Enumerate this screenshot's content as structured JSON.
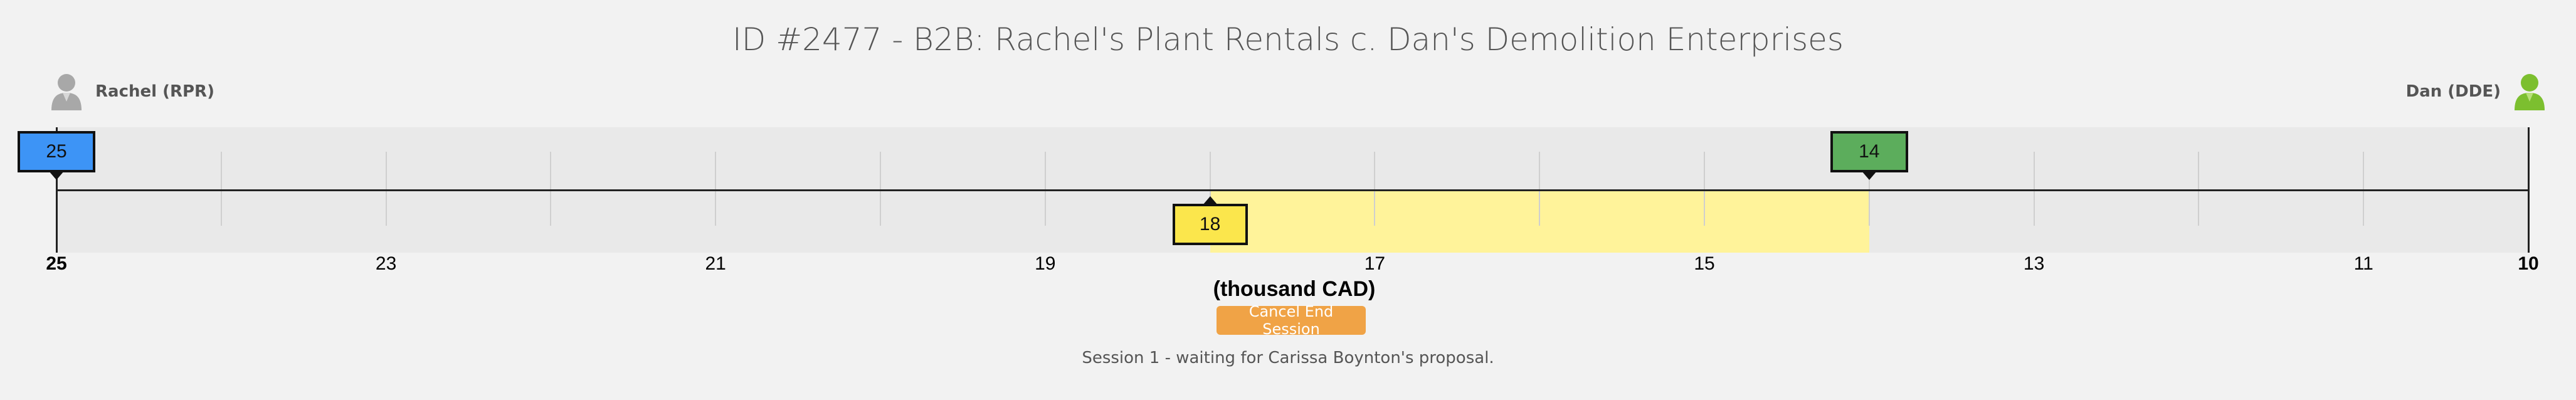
{
  "title": "ID #2477 - B2B: Rachel's Plant Rentals c. Dan's Demolition Enterprises",
  "parties": {
    "left": {
      "name": "Rachel (RPR)",
      "avatar_icon": "user-gray-icon",
      "color": "#a8a8a8"
    },
    "right": {
      "name": "Dan (DDE)",
      "avatar_icon": "user-green-icon",
      "color": "#7cbf2f"
    }
  },
  "scale": {
    "min_value": 25,
    "max_value": 10,
    "ticks": [
      25,
      24,
      23,
      22,
      21,
      20,
      19,
      18,
      17,
      16,
      15,
      14,
      13,
      12,
      11,
      10
    ],
    "labeled_ticks": [
      "25",
      "23",
      "21",
      "19",
      "17",
      "15",
      "13",
      "11",
      "10"
    ],
    "unit": "(thousand CAD)"
  },
  "offers": {
    "left_offer": {
      "label": "25",
      "value": 25,
      "color": "#3d94f6"
    },
    "right_offer": {
      "label": "14",
      "value": 14,
      "color": "#5cad5c"
    },
    "mid_offer": {
      "label": "18",
      "value": 18,
      "color": "#fbe64c"
    }
  },
  "zone": {
    "from": 18,
    "to": 14,
    "color": "#fff39a"
  },
  "actions": {
    "cancel_label": "Cancel End Session"
  },
  "status": "Session 1 - waiting for Carissa Boynton's proposal."
}
